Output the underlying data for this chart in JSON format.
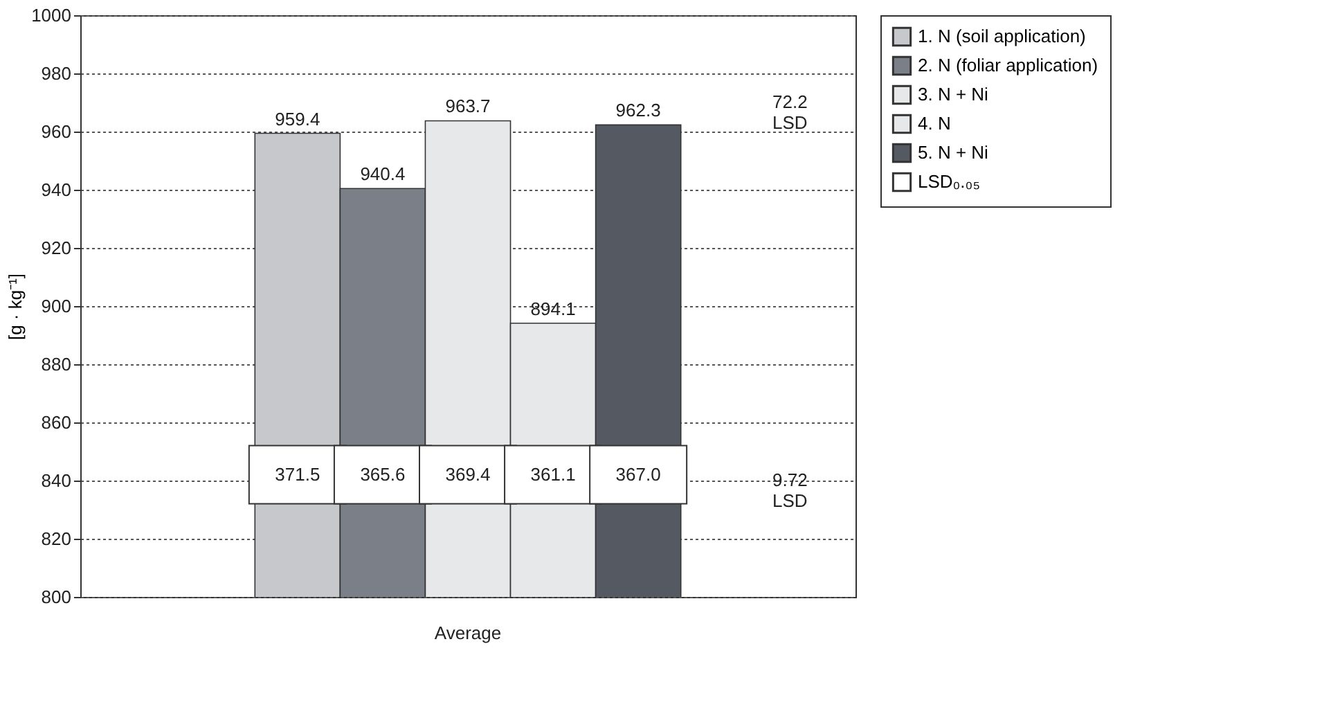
{
  "chart_data": {
    "type": "bar",
    "categories": [
      "Average"
    ],
    "ylabel": "[g · kg⁻¹]",
    "series": [
      {
        "name": "1. N (soil application)",
        "color": "#c6c8cc",
        "values": [
          959.4
        ]
      },
      {
        "name": "2. N (foliar application)",
        "color": "#7b7f87",
        "values": [
          940.4
        ]
      },
      {
        "name": "3. N + Ni",
        "color": "#e6e8ea",
        "values": [
          963.7
        ]
      },
      {
        "name": "4. N",
        "color": "#e6e8ea",
        "values": [
          894.1
        ]
      },
      {
        "name": "5. N + Ni",
        "color": "#555a62",
        "values": [
          962.3
        ]
      },
      {
        "name": "LSD₀.₀₅",
        "color": "#ffffff",
        "values": [
          null
        ]
      }
    ],
    "annotations": [
      "371.5",
      "365.6",
      "369.4",
      "361.1",
      "367.0",
      "72.2\nLSD",
      "9.72\nLSD"
    ],
    "ylim": [
      800,
      1000
    ],
    "yticks": [
      800,
      820,
      840,
      860,
      880,
      900,
      920,
      940,
      960,
      980,
      1000
    ],
    "data_labels": true,
    "grid": "y",
    "legend": "right"
  }
}
